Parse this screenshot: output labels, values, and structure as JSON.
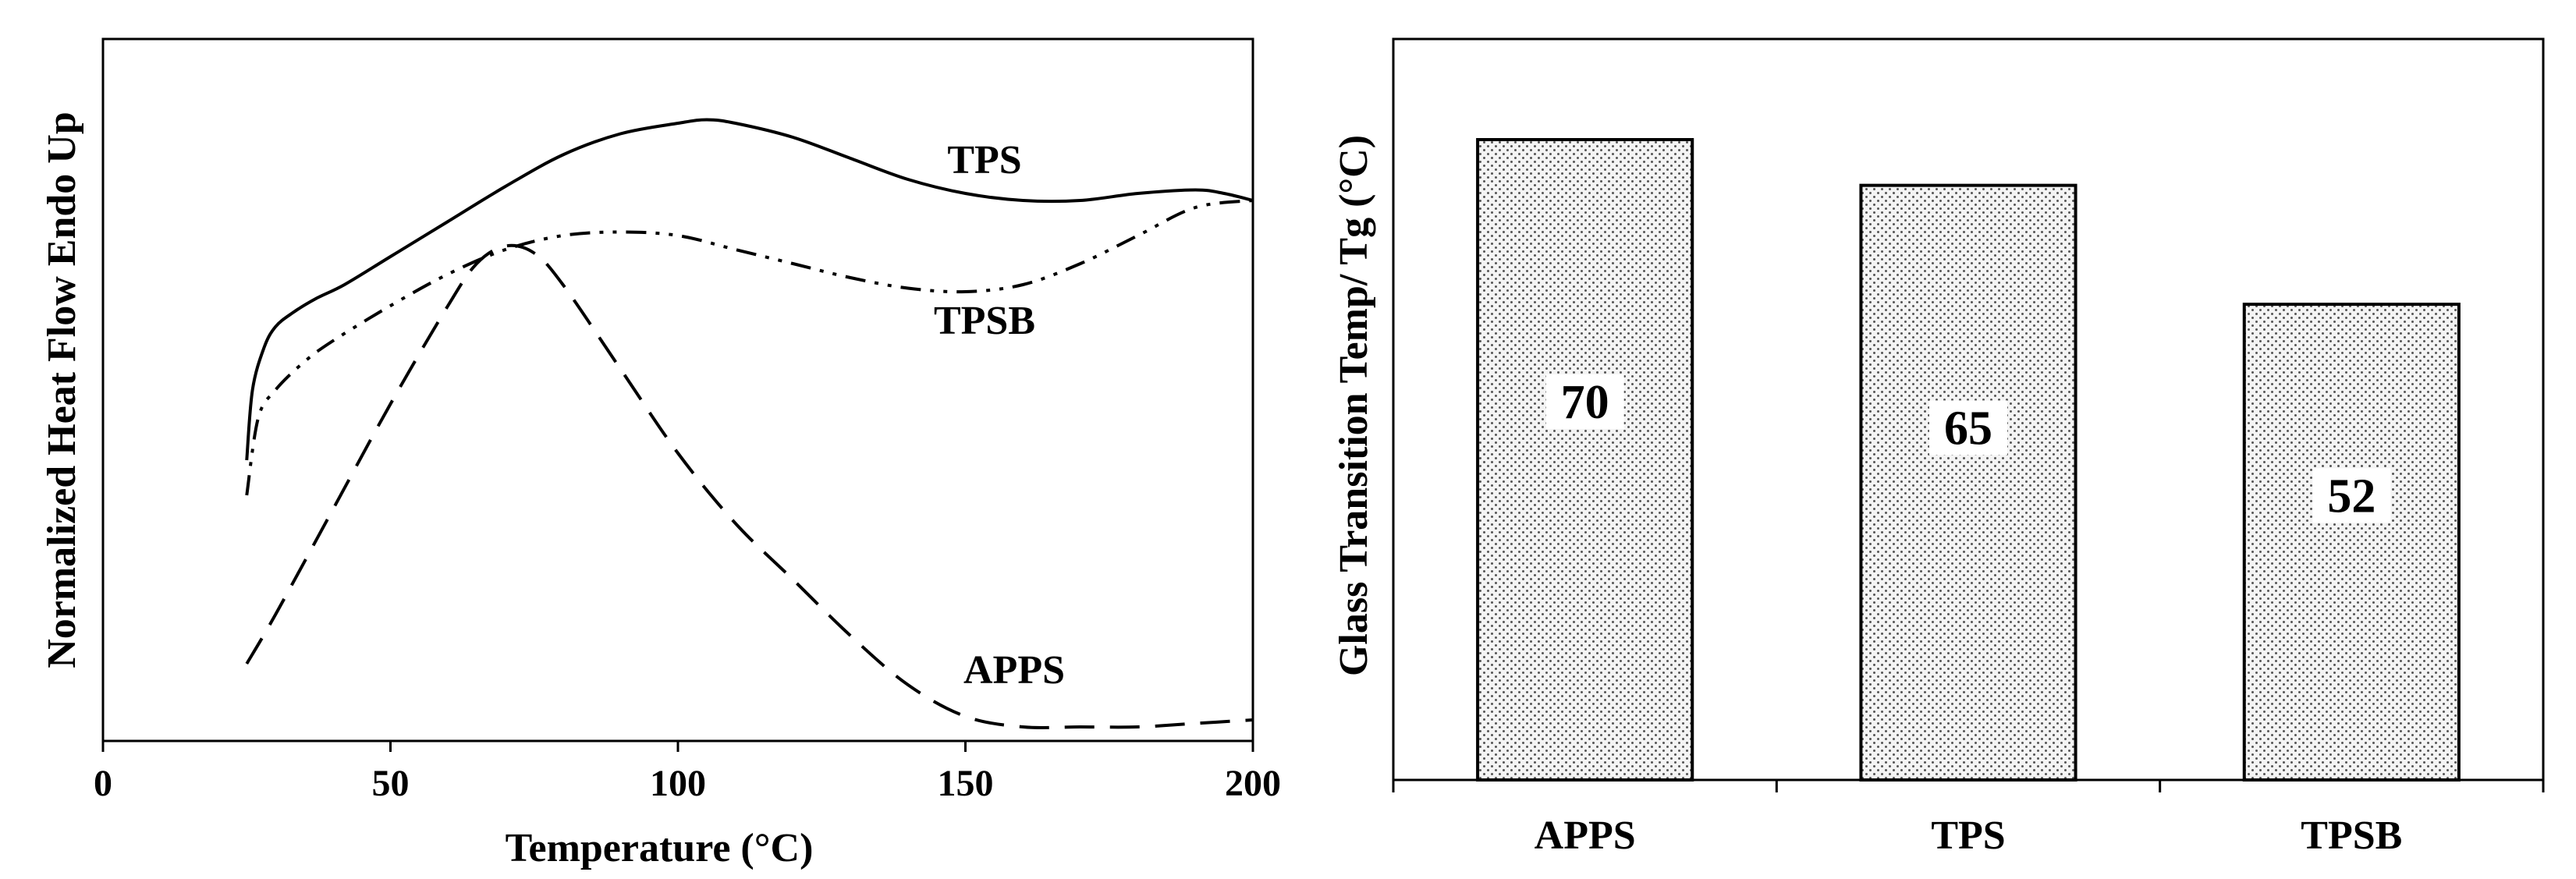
{
  "chart_data": [
    {
      "type": "line",
      "title": "",
      "xlabel": "Temperature (°C)",
      "ylabel": "Normalized Heat Flow Endo Up",
      "xlim": [
        0,
        200
      ],
      "xticks": [
        0,
        50,
        100,
        150,
        200
      ],
      "ylim": [
        0,
        1
      ],
      "y_ticks_shown": false,
      "grid": false,
      "legend": "inline labels",
      "series": [
        {
          "name": "TPS",
          "style": "solid",
          "color": "#000000",
          "x": [
            25,
            26,
            28,
            30,
            33,
            37,
            42,
            50,
            60,
            70,
            80,
            90,
            100,
            105,
            110,
            120,
            130,
            140,
            150,
            160,
            170,
            180,
            190,
            195,
            200
          ],
          "y": [
            0.4,
            0.5,
            0.56,
            0.59,
            0.61,
            0.63,
            0.65,
            0.69,
            0.74,
            0.79,
            0.835,
            0.865,
            0.88,
            0.885,
            0.88,
            0.86,
            0.83,
            0.8,
            0.78,
            0.77,
            0.77,
            0.78,
            0.785,
            0.78,
            0.77
          ]
        },
        {
          "name": "TPSB",
          "style": "dash-dot-dot",
          "color": "#000000",
          "x": [
            25,
            27,
            30,
            35,
            40,
            50,
            60,
            70,
            80,
            90,
            100,
            110,
            120,
            130,
            140,
            150,
            160,
            170,
            180,
            190,
            200
          ],
          "y": [
            0.35,
            0.46,
            0.5,
            0.54,
            0.57,
            0.62,
            0.665,
            0.7,
            0.72,
            0.725,
            0.72,
            0.7,
            0.68,
            0.66,
            0.645,
            0.64,
            0.65,
            0.68,
            0.72,
            0.76,
            0.77
          ]
        },
        {
          "name": "APPS",
          "style": "dashed",
          "color": "#000000",
          "x": [
            25,
            30,
            40,
            50,
            60,
            65,
            70,
            75,
            80,
            90,
            100,
            110,
            120,
            130,
            140,
            150,
            160,
            170,
            180,
            190,
            200
          ],
          "y": [
            0.11,
            0.18,
            0.33,
            0.48,
            0.62,
            0.68,
            0.705,
            0.695,
            0.65,
            0.53,
            0.41,
            0.31,
            0.23,
            0.15,
            0.08,
            0.035,
            0.02,
            0.02,
            0.02,
            0.025,
            0.03
          ]
        }
      ]
    },
    {
      "type": "bar",
      "title": "",
      "xlabel": "",
      "ylabel": "Glass Transition Temp/ Tg (°C)",
      "categories": [
        "APPS",
        "TPS",
        "TPSB"
      ],
      "values": [
        70,
        65,
        52
      ],
      "value_labels": [
        "70",
        "65",
        "52"
      ],
      "ylim": [
        0,
        81
      ],
      "y_ticks_shown": false,
      "grid": false,
      "bar_fill": "dotted-pattern",
      "bar_colors": [
        "#f4f4f4",
        "#555555"
      ]
    }
  ]
}
